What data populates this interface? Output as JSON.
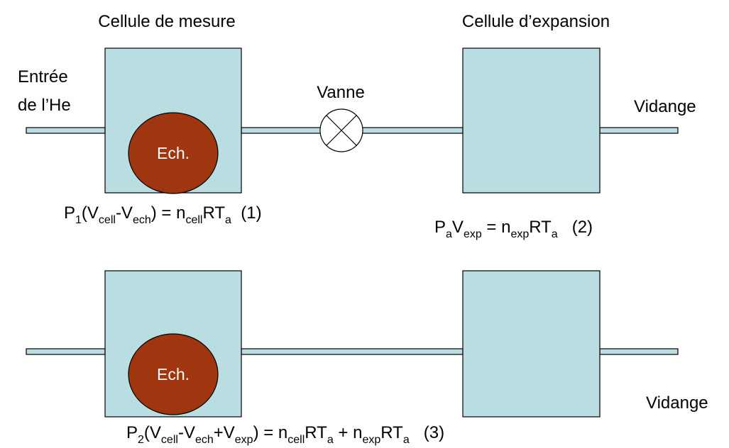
{
  "titles": {
    "measure_cell": "Cellule de mesure",
    "expansion_cell": "Cellule d’expansion"
  },
  "inlet": [
    "Entrée",
    "de l’He"
  ],
  "valve": "Vanne",
  "drain": [
    "Vidange",
    "Vidange"
  ],
  "samples": [
    "Ech.",
    "Ech."
  ],
  "equations": [
    {
      "parts": [
        {
          "text": "P"
        },
        {
          "sub": "1"
        },
        {
          "text": "(V"
        },
        {
          "sub": "cell"
        },
        {
          "text": "-V"
        },
        {
          "sub": "ech"
        },
        {
          "text": ") = n"
        },
        {
          "sub": "cell"
        },
        {
          "text": "RT"
        },
        {
          "sub": "a"
        },
        {
          "text": "  (1)"
        }
      ]
    },
    {
      "parts": [
        {
          "text": "P"
        },
        {
          "sub": "a"
        },
        {
          "text": "V"
        },
        {
          "sub": "exp"
        },
        {
          "text": " = n"
        },
        {
          "sub": "exp"
        },
        {
          "text": "RT"
        },
        {
          "sub": "a"
        },
        {
          "text": "   (2)"
        }
      ]
    },
    {
      "parts": [
        {
          "text": "P"
        },
        {
          "sub": "2"
        },
        {
          "text": "(V"
        },
        {
          "sub": "cell"
        },
        {
          "text": "-V"
        },
        {
          "sub": "ech"
        },
        {
          "text": "+V"
        },
        {
          "sub": "exp"
        },
        {
          "text": ") = n"
        },
        {
          "sub": "cell"
        },
        {
          "text": "RT"
        },
        {
          "sub": "a"
        },
        {
          "text": " + n"
        },
        {
          "sub": "exp"
        },
        {
          "text": "RT"
        },
        {
          "sub": "a"
        },
        {
          "text": "   (3)"
        }
      ]
    }
  ]
}
